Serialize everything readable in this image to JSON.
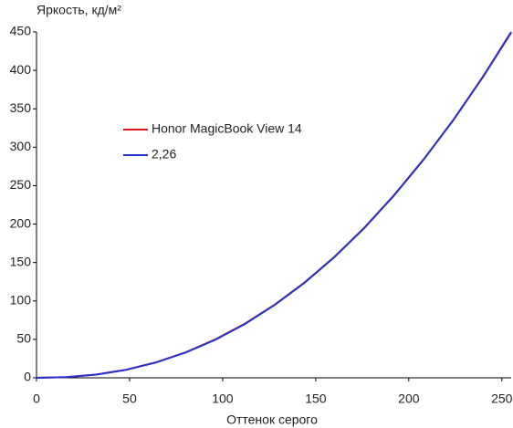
{
  "chart_data": {
    "type": "line",
    "ylabel": "Яркость, кд/м²",
    "xlabel": "Оттенок серого",
    "x": [
      0,
      16,
      32,
      48,
      64,
      80,
      96,
      112,
      128,
      144,
      160,
      176,
      192,
      208,
      224,
      240,
      255
    ],
    "series": [
      {
        "name": "Honor MagicBook View 14",
        "color": "#e8121e",
        "values": [
          0,
          0.9,
          4.2,
          10.4,
          20,
          33,
          49.8,
          70.5,
          95.2,
          124,
          157.2,
          195,
          237.4,
          284.3,
          335.5,
          392,
          449
        ]
      },
      {
        "name": "2,26",
        "color": "#2233cc",
        "values": [
          0,
          0.86,
          4.1,
          10.3,
          19.8,
          32.8,
          49.5,
          70.1,
          94.9,
          123.7,
          157,
          194.7,
          237,
          284,
          335.7,
          392.4,
          450
        ]
      }
    ],
    "xlim": [
      0,
      255
    ],
    "ylim": [
      0,
      450
    ],
    "xticks": [
      0,
      50,
      100,
      150,
      200,
      250
    ],
    "yticks": [
      0,
      50,
      100,
      150,
      200,
      250,
      300,
      350,
      400,
      450
    ],
    "grid": false,
    "legend": "upper left"
  }
}
